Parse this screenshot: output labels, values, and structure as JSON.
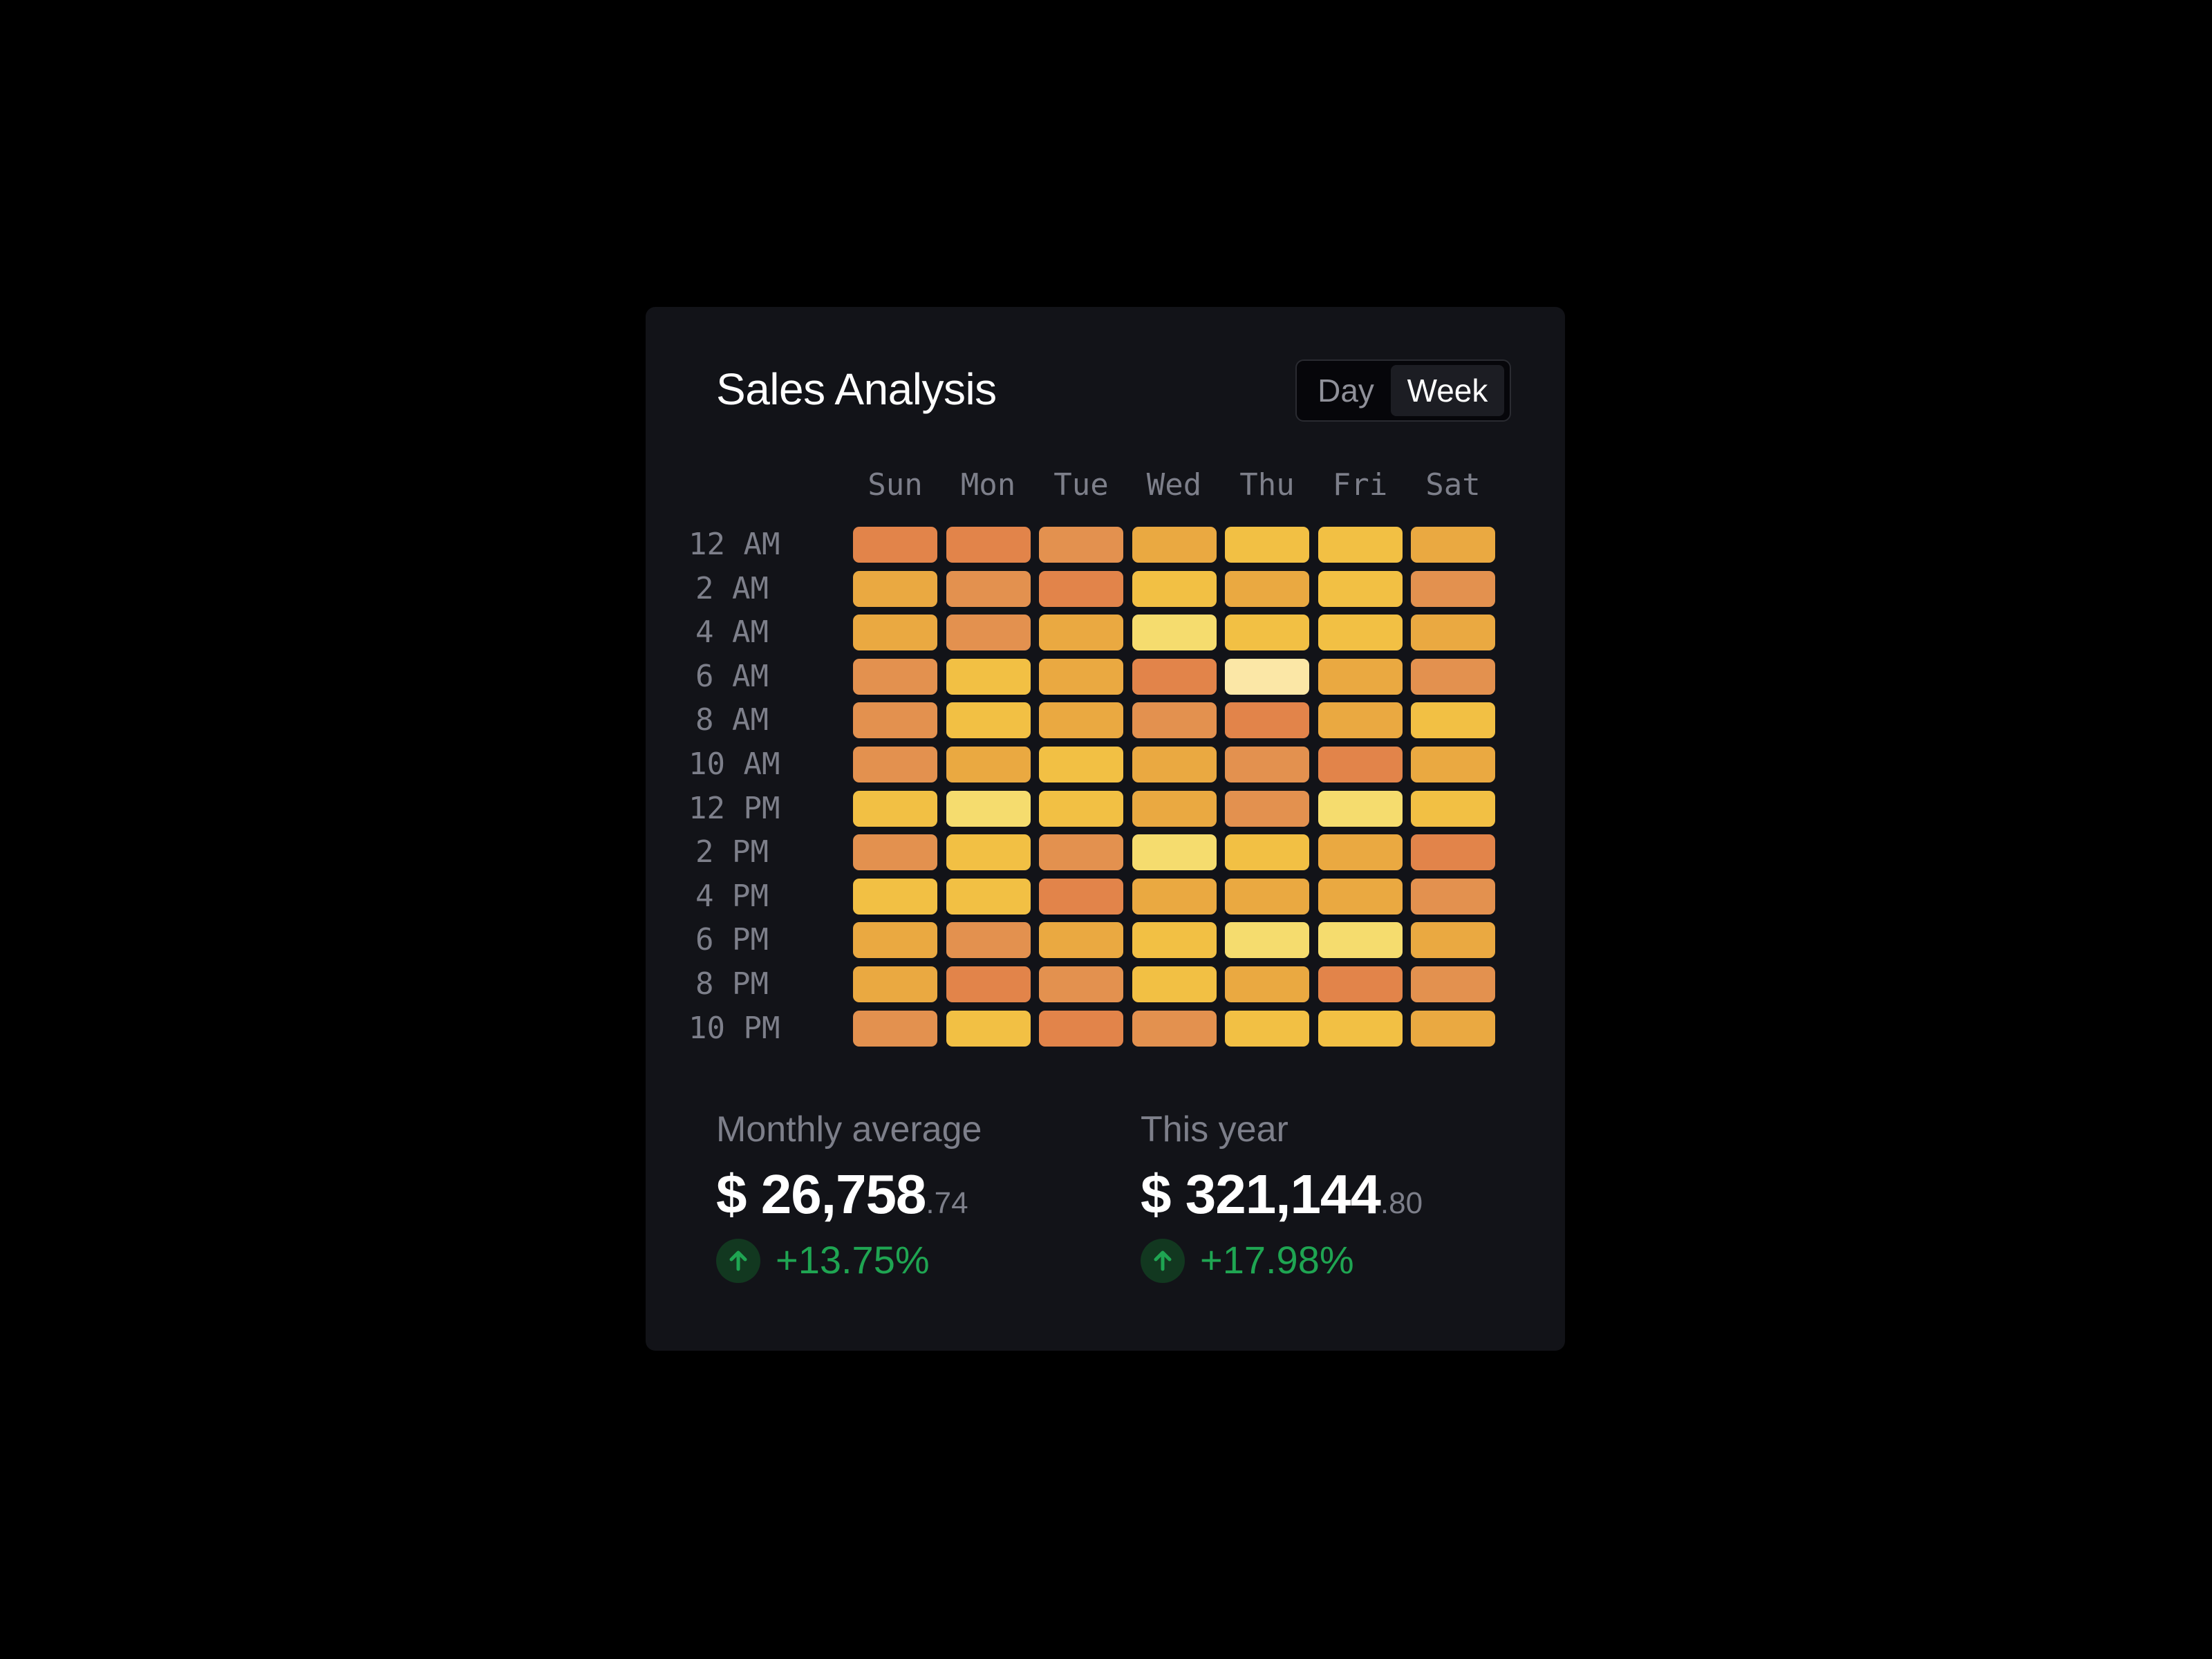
{
  "card": {
    "title": "Sales Analysis",
    "toggle": {
      "options": [
        "Day",
        "Week"
      ],
      "selected": "Week"
    }
  },
  "chart_data": {
    "type": "heatmap",
    "columns": [
      "Sun",
      "Mon",
      "Tue",
      "Wed",
      "Thu",
      "Fri",
      "Sat"
    ],
    "rows": [
      "12 AM",
      "2 AM",
      "4 AM",
      "6 AM",
      "8 AM",
      "10 AM",
      "12 PM",
      "2 PM",
      "4 PM",
      "6 PM",
      "8 PM",
      "10 PM"
    ],
    "values": [
      [
        1,
        1,
        2,
        3,
        4,
        4,
        3
      ],
      [
        3,
        2,
        1,
        4,
        3,
        4,
        2
      ],
      [
        3,
        2,
        3,
        5,
        4,
        4,
        3
      ],
      [
        2,
        4,
        3,
        1,
        6,
        3,
        2
      ],
      [
        2,
        4,
        3,
        2,
        1,
        3,
        4
      ],
      [
        2,
        3,
        4,
        3,
        2,
        1,
        3
      ],
      [
        4,
        5,
        4,
        3,
        2,
        5,
        4
      ],
      [
        2,
        4,
        2,
        5,
        4,
        3,
        1
      ],
      [
        4,
        4,
        1,
        3,
        3,
        3,
        2
      ],
      [
        3,
        2,
        3,
        4,
        5,
        5,
        3
      ],
      [
        3,
        1,
        2,
        4,
        3,
        1,
        2
      ],
      [
        2,
        4,
        1,
        2,
        4,
        4,
        3
      ]
    ],
    "color_scale": [
      "#e2844a",
      "#e3914f",
      "#eaa941",
      "#f2c044",
      "#f5dc6e",
      "#fbe7a6"
    ]
  },
  "stats": {
    "monthly": {
      "label": "Monthly average",
      "currency": "$",
      "whole": "26,758",
      "cents": ".74",
      "change": "+13.75%"
    },
    "year": {
      "label": "This year",
      "currency": "$",
      "whole": "321,144",
      "cents": ".80",
      "change": "+17.98%"
    }
  },
  "icons": {
    "change_icon": "arrow-up-icon"
  },
  "colors": {
    "positive": "#1fa552",
    "card_bg": "#121318"
  }
}
